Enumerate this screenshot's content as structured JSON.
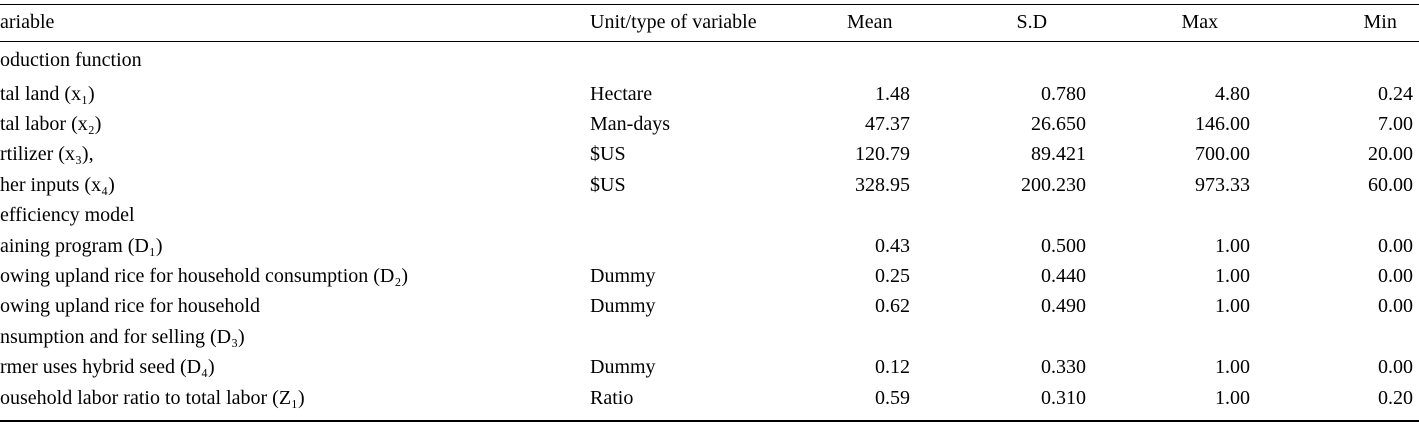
{
  "table": {
    "header": [
      "ariable",
      "Unit/type of variable",
      "Mean",
      "S.D",
      "Max",
      "Min"
    ],
    "rows": [
      [
        "oduction function",
        null,
        null,
        null,
        null,
        null
      ],
      [
        "tal land (x₁)",
        "Hectare",
        "1.48",
        "0.780",
        "4.80",
        "0.24"
      ],
      [
        "tal labor (x₂)",
        "Man-days",
        "47.37",
        "26.650",
        "146.00",
        "7.00"
      ],
      [
        "rtilizer (x₃),",
        "$US",
        "120.79",
        "89.421",
        "700.00",
        "20.00"
      ],
      [
        "her inputs (x₄)",
        "$US",
        "328.95",
        "200.230",
        "973.33",
        "60.00"
      ],
      [
        "efficiency model",
        null,
        null,
        null,
        null,
        null
      ],
      [
        "aining program (D₁)",
        null,
        "0.43",
        "0.500",
        "1.00",
        "0.00"
      ],
      [
        "owing upland rice for household consumption (D₂)",
        "Dummy",
        "0.25",
        "0.440",
        "1.00",
        "0.00"
      ],
      [
        "owing upland rice for household",
        "Dummy",
        "0.62",
        "0.490",
        "1.00",
        "0.00"
      ],
      [
        "nsumption and for selling (D₃)",
        null,
        null,
        null,
        null,
        null
      ],
      [
        "rmer uses hybrid seed (D₄)",
        "Dummy",
        "0.12",
        "0.330",
        "1.00",
        "0.00"
      ],
      [
        "ousehold labor ratio to total labor (Z₁)",
        "Ratio",
        "0.59",
        "0.310",
        "1.00",
        "0.20"
      ]
    ]
  }
}
